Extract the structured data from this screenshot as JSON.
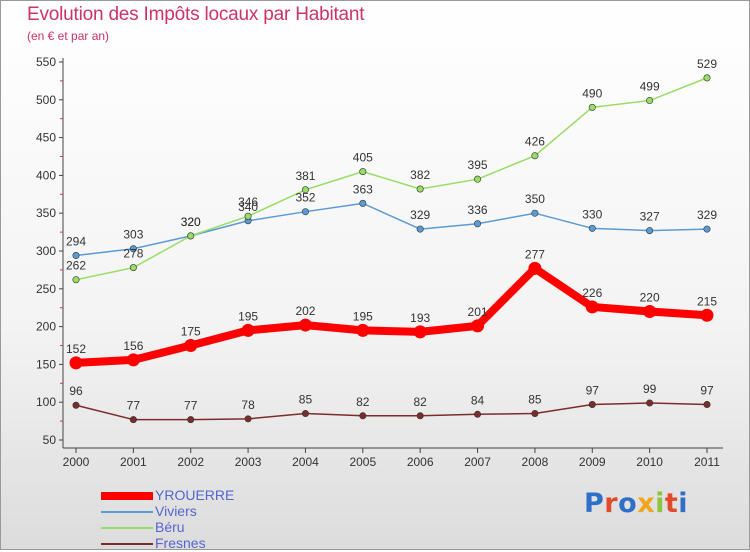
{
  "title": "Evolution des Impôts locaux par Habitant",
  "subtitle": "(en € et par an)",
  "chart_data": {
    "type": "line",
    "x": [
      "2000",
      "2001",
      "2002",
      "2003",
      "2004",
      "2005",
      "2006",
      "2007",
      "2008",
      "2009",
      "2010",
      "2011"
    ],
    "ylim": [
      50,
      550
    ],
    "yticks": [
      50,
      100,
      150,
      200,
      250,
      300,
      350,
      400,
      450,
      500,
      550
    ],
    "grid": false,
    "legend_position": "bottom-left",
    "series": [
      {
        "name": "YROUERRE",
        "color": "#ff0000",
        "values": [
          152,
          156,
          175,
          195,
          202,
          195,
          193,
          201,
          277,
          226,
          220,
          215
        ]
      },
      {
        "name": "Viviers",
        "color": "#5b9bd5",
        "values": [
          294,
          303,
          320,
          340,
          352,
          363,
          329,
          336,
          350,
          330,
          327,
          329
        ]
      },
      {
        "name": "Béru",
        "color": "#99dd66",
        "values": [
          262,
          278,
          320,
          346,
          381,
          405,
          382,
          395,
          426,
          490,
          499,
          529
        ]
      },
      {
        "name": "Fresnes",
        "color": "#7b2c2c",
        "values": [
          96,
          77,
          77,
          78,
          85,
          82,
          82,
          84,
          85,
          97,
          99,
          97
        ]
      }
    ]
  },
  "logo": {
    "letters": [
      {
        "ch": "P",
        "color": "#2f6fc8"
      },
      {
        "ch": "r",
        "color": "#e14b2b"
      },
      {
        "ch": "o",
        "color": "#2f6fc8"
      },
      {
        "ch": "x",
        "color": "#f2a51a"
      },
      {
        "ch": "i",
        "color": "#8cc63e"
      },
      {
        "ch": "t",
        "color": "#e14b2b"
      },
      {
        "ch": "i",
        "color": "#2f6fc8"
      }
    ]
  }
}
